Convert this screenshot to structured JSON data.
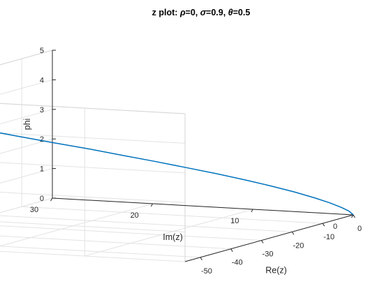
{
  "chart_data": {
    "type": "line",
    "projection": "3d",
    "title_parts": [
      {
        "text": "z plot: ",
        "style": "normal"
      },
      {
        "text": "ρ",
        "style": "italic"
      },
      {
        "text": "=0, ",
        "style": "normal"
      },
      {
        "text": "σ",
        "style": "italic"
      },
      {
        "text": "=0.9, ",
        "style": "normal"
      },
      {
        "text": "θ",
        "style": "italic"
      },
      {
        "text": "=0.5",
        "style": "normal"
      }
    ],
    "xlabel": "Re(z)",
    "ylabel": "Im(z)",
    "zlabel": "phi",
    "xlim": [
      -55,
      0
    ],
    "ylim": [
      0,
      30
    ],
    "zlim": [
      0,
      5
    ],
    "xticks": [
      -50,
      -40,
      -30,
      -20,
      -10,
      0
    ],
    "yticks": [
      0,
      10,
      20,
      30
    ],
    "zticks": [
      0,
      1,
      2,
      3,
      4,
      5
    ],
    "grid": true,
    "series": [
      {
        "color": "#0072bd",
        "x": [
          0,
          -0.4,
          -1.2,
          -2.5,
          -4.2,
          -6.5,
          -9.2,
          -12.3,
          -15.8,
          -19.6,
          -23.6,
          -27.8,
          -32.1,
          -36.5,
          -40.9,
          -45.3,
          -49.5,
          -53.8
        ],
        "y": [
          0,
          0.3,
          0.8,
          1.6,
          2.6,
          3.9,
          5.4,
          7.0,
          8.8,
          10.7,
          12.6,
          14.6,
          16.6,
          18.7,
          20.8,
          22.8,
          24.9,
          27.0
        ],
        "z": [
          0,
          0.13,
          0.27,
          0.45,
          0.65,
          0.89,
          1.14,
          1.4,
          1.68,
          1.96,
          2.25,
          2.54,
          2.84,
          3.13,
          3.43,
          3.73,
          4.02,
          4.31
        ]
      }
    ]
  }
}
